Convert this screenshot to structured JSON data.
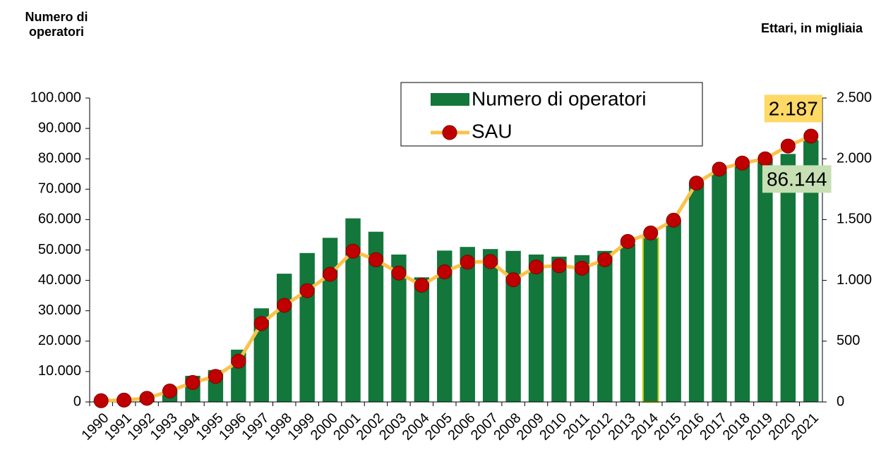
{
  "chart_data": {
    "type": "bar_line",
    "y_label": "Numero di operatori",
    "y2_label": "Ettari, in migliaia",
    "categories": [
      "1990",
      "1991",
      "1992",
      "1993",
      "1994",
      "1995",
      "1996",
      "1997",
      "1998",
      "1999",
      "2000",
      "2001",
      "2002",
      "2003",
      "2004",
      "2005",
      "2006",
      "2007",
      "2008",
      "2009",
      "2010",
      "2011",
      "2012",
      "2013",
      "2014",
      "2015",
      "2016",
      "2017",
      "2018",
      "2019",
      "2020",
      "2021"
    ],
    "highlight_category": "2014",
    "series": [
      {
        "name": "Numero di operatori",
        "color": "#13763b",
        "type": "bar",
        "values": [
          500,
          800,
          1500,
          4000,
          8600,
          10500,
          17200,
          30800,
          42200,
          49000,
          54000,
          60400,
          56000,
          48500,
          41000,
          49800,
          51000,
          50300,
          49700,
          48500,
          47800,
          48300,
          49700,
          52000,
          54000,
          60000,
          72000,
          75900,
          78000,
          80000,
          81600,
          86144
        ],
        "value_labels": [
          null,
          null,
          null,
          null,
          null,
          null,
          null,
          null,
          null,
          null,
          null,
          null,
          null,
          null,
          null,
          null,
          null,
          null,
          null,
          null,
          null,
          null,
          null,
          null,
          null,
          null,
          null,
          null,
          null,
          null,
          null,
          "86.144"
        ]
      },
      {
        "name": "SAU",
        "color": "#f9c24a",
        "marker_color": "#c00000",
        "type": "line",
        "axis": "y2",
        "values": [
          10,
          15,
          30,
          90,
          160,
          210,
          335,
          645,
          795,
          915,
          1050,
          1240,
          1170,
          1060,
          960,
          1070,
          1150,
          1155,
          1005,
          1110,
          1120,
          1100,
          1170,
          1320,
          1390,
          1495,
          1800,
          1915,
          1965,
          2000,
          2105,
          2187
        ],
        "value_labels": [
          null,
          null,
          null,
          null,
          null,
          null,
          null,
          null,
          null,
          null,
          null,
          null,
          null,
          null,
          null,
          null,
          null,
          null,
          null,
          null,
          null,
          null,
          null,
          null,
          null,
          null,
          null,
          null,
          null,
          null,
          null,
          "2.187"
        ]
      }
    ],
    "ylim": [
      0,
      100000
    ],
    "yticks": [
      0,
      {
        "value": 10000,
        "label": "10.000"
      },
      {
        "value": 20000,
        "label": "20.000"
      },
      {
        "value": 30000,
        "label": "30.000"
      },
      {
        "value": 40000,
        "label": "40.000"
      },
      {
        "value": 50000,
        "label": "50.000"
      },
      {
        "value": 60000,
        "label": "60.000"
      },
      {
        "value": 70000,
        "label": "70.000"
      },
      {
        "value": 80000,
        "label": "80.000"
      },
      {
        "value": 90000,
        "label": "90.000"
      },
      {
        "value": 100000,
        "label": "100.000"
      }
    ],
    "y2lim": [
      0,
      2500
    ],
    "y2ticks": [
      0,
      500,
      {
        "value": 1000,
        "label": "1.000"
      },
      {
        "value": 1500,
        "label": "1.500"
      },
      {
        "value": 2000,
        "label": "2.000"
      },
      {
        "value": 2500,
        "label": "2.500"
      }
    ],
    "legend": "top-right"
  }
}
